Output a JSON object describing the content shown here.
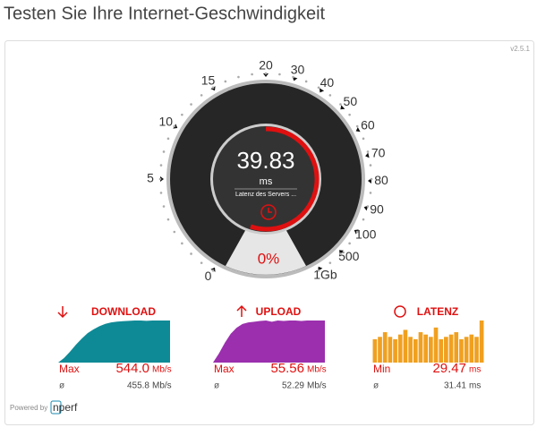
{
  "header": {
    "title": "Testen Sie Ihre Internet-Geschwindigkeit"
  },
  "version": "v2.5.1",
  "gauge": {
    "labels": [
      "0",
      "5",
      "10",
      "15",
      "20",
      "30",
      "40",
      "50",
      "60",
      "70",
      "80",
      "90",
      "100",
      "500",
      "1Gb"
    ],
    "value": "39.83",
    "unit": "ms",
    "caption": "Latenz des Servers ...",
    "progress": "0%"
  },
  "panels": [
    {
      "title": "DOWNLOAD",
      "color": "#0e8a96",
      "stat_label": "Max",
      "stat_value": "544.0",
      "stat_unit": "Mb/s",
      "avg_label": "ø",
      "avg_value": "455.8",
      "avg_unit": "Mb/s",
      "samples": [
        0,
        60,
        140,
        230,
        310,
        380,
        430,
        470,
        500,
        520,
        530,
        535,
        540,
        544,
        544,
        540,
        544,
        544,
        544,
        544
      ]
    },
    {
      "title": "UPLOAD",
      "color": "#9b2fae",
      "stat_label": "Max",
      "stat_value": "55.56",
      "stat_unit": "Mb/s",
      "avg_label": "ø",
      "avg_value": "52.29",
      "avg_unit": "Mb/s",
      "samples": [
        0,
        12,
        26,
        38,
        46,
        51,
        53,
        54,
        55,
        55.56,
        54,
        55.56,
        55,
        55.56,
        55.56,
        55,
        55.56,
        55.56,
        55.56,
        55.56
      ]
    },
    {
      "title": "LATENZ",
      "color": "#f0a020",
      "stat_label": "Min",
      "stat_value": "29.47",
      "stat_unit": "ms",
      "avg_label": "ø",
      "avg_value": "31.41",
      "avg_unit": "ms",
      "samples": [
        30,
        31,
        33,
        31,
        30,
        32,
        34,
        31,
        30,
        33,
        32,
        31,
        35,
        30,
        31,
        32,
        33,
        30,
        31,
        32,
        31,
        38
      ]
    }
  ],
  "footer": {
    "powered": "Powered by",
    "logo": "nperf"
  }
}
